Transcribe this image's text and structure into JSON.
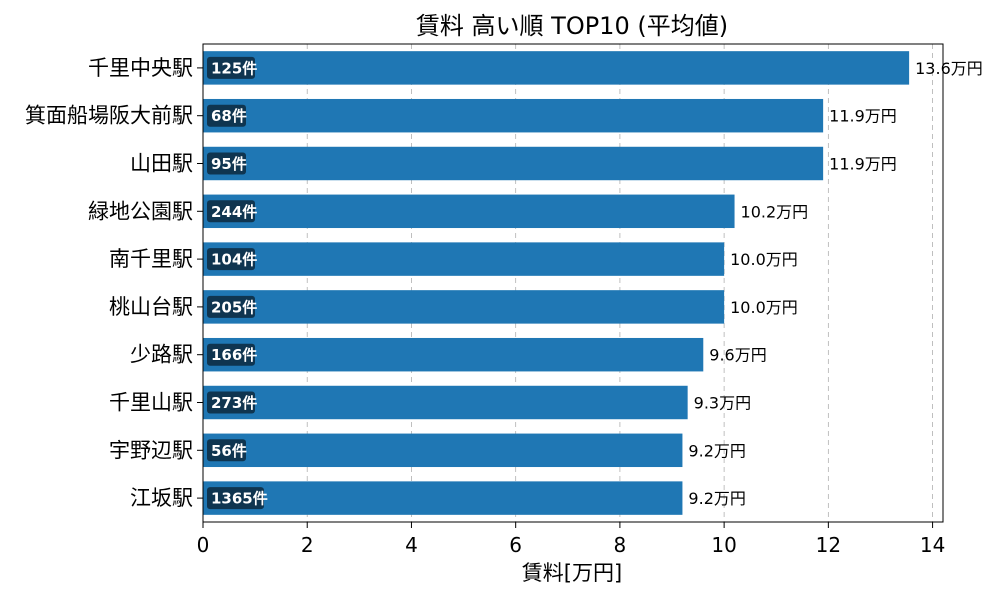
{
  "chart_data": {
    "type": "bar",
    "orientation": "horizontal",
    "title": "賃料 高い順 TOP10 (平均値)",
    "xlabel": "賃料[万円]",
    "ylabel": "",
    "xlim": [
      0,
      14.2
    ],
    "xticks": [
      "0",
      "2",
      "4",
      "6",
      "8",
      "10",
      "12",
      "14"
    ],
    "grid": "x-dashed",
    "bar_color": "#1f77b4",
    "badge_color": "#0f3550",
    "categories": [
      "千里中央駅",
      "箕面船場阪大前駅",
      "山田駅",
      "緑地公園駅",
      "南千里駅",
      "桃山台駅",
      "少路駅",
      "千里山駅",
      "宇野辺駅",
      "江坂駅"
    ],
    "values": [
      13.55,
      11.9,
      11.9,
      10.2,
      10.0,
      10.0,
      9.6,
      9.3,
      9.2,
      9.2
    ],
    "value_labels": [
      "13.6万円",
      "11.9万円",
      "11.9万円",
      "10.2万円",
      "10.0万円",
      "10.0万円",
      "9.6万円",
      "9.3万円",
      "9.2万円",
      "9.2万円"
    ],
    "counts": [
      "125件",
      "68件",
      "95件",
      "244件",
      "104件",
      "205件",
      "166件",
      "273件",
      "56件",
      "1365件"
    ]
  }
}
